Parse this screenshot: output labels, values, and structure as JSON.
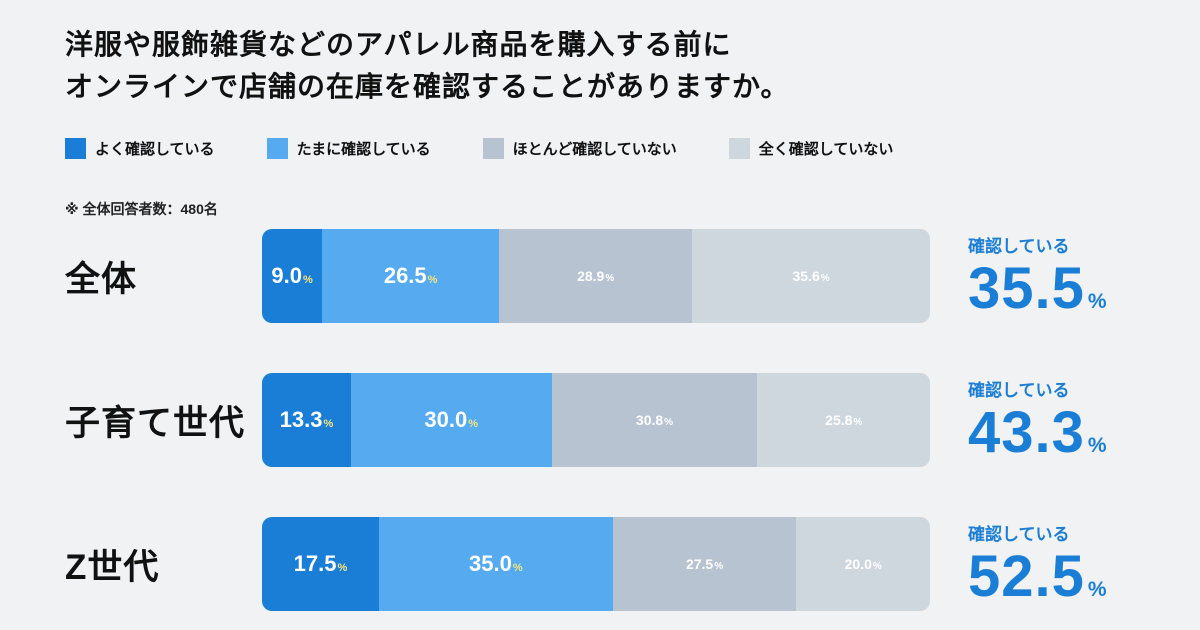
{
  "title": {
    "line1": "洋服や服飾雑貨などのアパレル商品を購入する前に",
    "line2": "オンラインで店舗の在庫を確認することがありますか。"
  },
  "note": "※ 全体回答者数：480名",
  "unit": "%",
  "colors": {
    "often": "#1b7ed6",
    "sometimes": "#55aaf0",
    "rarely": "#b8c3d2",
    "never": "#ced6de",
    "accent_text": "#1b7ed6",
    "background": "#f1f2f4",
    "unit_highlight": "#f7e47c"
  },
  "legend": [
    {
      "label": "よく確認している"
    },
    {
      "label": "たまに確認している"
    },
    {
      "label": "ほとんど確認していない"
    },
    {
      "label": "全く確認していない"
    }
  ],
  "chart_data": {
    "type": "bar",
    "stacked": true,
    "orientation": "horizontal",
    "title": "洋服や服飾雑貨などのアパレル商品を購入する前にオンラインで店舗の在庫を確認することがありますか。",
    "note": "全体回答者数：480名",
    "categories": [
      "全体",
      "子育て世代",
      "Z世代"
    ],
    "series": [
      {
        "name": "よく確認している",
        "values": [
          9.0,
          13.3,
          17.5
        ]
      },
      {
        "name": "たまに確認している",
        "values": [
          26.5,
          30.0,
          35.0
        ]
      },
      {
        "name": "ほとんど確認していない",
        "values": [
          28.9,
          30.8,
          27.5
        ]
      },
      {
        "name": "全く確認していない",
        "values": [
          35.6,
          25.8,
          20.0
        ]
      }
    ],
    "summary_label": "確認している",
    "summary_values": [
      35.5,
      43.3,
      52.5
    ],
    "xlim": [
      0,
      100
    ],
    "legend_position": "top",
    "grid": false
  },
  "rows": [
    {
      "label": "全体",
      "segments": [
        {
          "value": 9.0,
          "num": "9.0"
        },
        {
          "value": 26.5,
          "num": "26.5"
        },
        {
          "value": 28.9,
          "num": "28.9"
        },
        {
          "value": 35.6,
          "num": "35.6"
        }
      ],
      "summary": {
        "label": "確認している",
        "num": "35.5"
      }
    },
    {
      "label": "子育て世代",
      "segments": [
        {
          "value": 13.3,
          "num": "13.3"
        },
        {
          "value": 30.0,
          "num": "30.0"
        },
        {
          "value": 30.8,
          "num": "30.8"
        },
        {
          "value": 25.8,
          "num": "25.8"
        }
      ],
      "summary": {
        "label": "確認している",
        "num": "43.3"
      }
    },
    {
      "label": "Z世代",
      "segments": [
        {
          "value": 17.5,
          "num": "17.5"
        },
        {
          "value": 35.0,
          "num": "35.0"
        },
        {
          "value": 27.5,
          "num": "27.5"
        },
        {
          "value": 20.0,
          "num": "20.0"
        }
      ],
      "summary": {
        "label": "確認している",
        "num": "52.5"
      }
    }
  ]
}
